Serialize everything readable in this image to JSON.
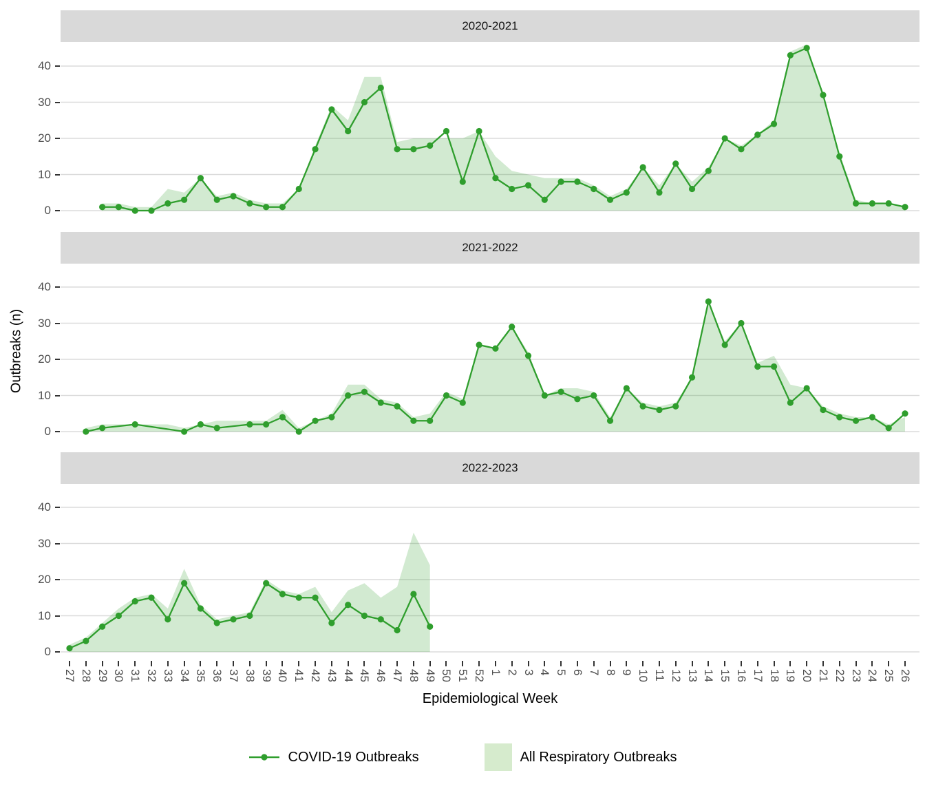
{
  "figure": {
    "x_axis_title": "Epidemiological Week",
    "y_axis_title": "Outbreaks (n)",
    "y_ticks": [
      0,
      10,
      20,
      30,
      40
    ],
    "weeks": [
      "27",
      "28",
      "29",
      "30",
      "31",
      "32",
      "33",
      "34",
      "35",
      "36",
      "37",
      "38",
      "39",
      "40",
      "41",
      "42",
      "43",
      "44",
      "45",
      "46",
      "47",
      "48",
      "49",
      "50",
      "51",
      "52",
      "1",
      "2",
      "3",
      "4",
      "5",
      "6",
      "7",
      "8",
      "9",
      "10",
      "11",
      "12",
      "13",
      "14",
      "15",
      "16",
      "17",
      "18",
      "19",
      "20",
      "21",
      "22",
      "23",
      "24",
      "25",
      "26"
    ],
    "facets": [
      "2020-2021",
      "2021-2022",
      "2022-2023"
    ],
    "legend": [
      {
        "label": "COVID-19 Outbreaks",
        "symbol": "line-point-swatch"
      },
      {
        "label": "All Respiratory Outbreaks",
        "symbol": "area-swatch"
      }
    ],
    "colors": {
      "line": "#2f9e2d",
      "area": "#33a02c",
      "area_opacity": 0.22,
      "legend_area_swatch": "#d6ebcd",
      "strip_bg": "#d9d9d9",
      "gridline": "#dbdbdb",
      "axis_text": "#4d4d4d",
      "tick_mark": "#333333"
    }
  },
  "chart_data": [
    {
      "type": "area",
      "facet": "2020-2021",
      "xlabel": "Epidemiological Week",
      "ylabel": "Outbreaks (n)",
      "ylim": [
        0,
        46
      ],
      "grid": true,
      "legend_position": "bottom",
      "categories": [
        "27",
        "28",
        "29",
        "30",
        "31",
        "32",
        "33",
        "34",
        "35",
        "36",
        "37",
        "38",
        "39",
        "40",
        "41",
        "42",
        "43",
        "44",
        "45",
        "46",
        "47",
        "48",
        "49",
        "50",
        "51",
        "52",
        "1",
        "2",
        "3",
        "4",
        "5",
        "6",
        "7",
        "8",
        "9",
        "10",
        "11",
        "12",
        "13",
        "14",
        "15",
        "16",
        "17",
        "18",
        "19",
        "20",
        "21",
        "22",
        "23",
        "24",
        "25",
        "26"
      ],
      "series": [
        {
          "name": "COVID-19 Outbreaks",
          "type": "line",
          "values": [
            null,
            null,
            1,
            1,
            0,
            0,
            2,
            3,
            9,
            3,
            4,
            2,
            1,
            1,
            6,
            17,
            28,
            22,
            30,
            34,
            17,
            17,
            18,
            22,
            8,
            22,
            9,
            6,
            7,
            3,
            8,
            8,
            6,
            3,
            5,
            12,
            5,
            13,
            6,
            11,
            20,
            17,
            21,
            24,
            43,
            45,
            32,
            15,
            2,
            2,
            2,
            1
          ]
        },
        {
          "name": "All Respiratory Outbreaks",
          "type": "area",
          "values": [
            null,
            null,
            2,
            2,
            1,
            1,
            6,
            5,
            9,
            4,
            5,
            3,
            2,
            2,
            6,
            18,
            29,
            25,
            37,
            37,
            19,
            20,
            20,
            20,
            20,
            22,
            15,
            11,
            10,
            9,
            9,
            9,
            7,
            4,
            6,
            12,
            7,
            13,
            8,
            12,
            20,
            18,
            21,
            25,
            44,
            46,
            32,
            16,
            3,
            2,
            2,
            1
          ]
        }
      ]
    },
    {
      "type": "area",
      "facet": "2021-2022",
      "xlabel": "Epidemiological Week",
      "ylabel": "Outbreaks (n)",
      "ylim": [
        0,
        46
      ],
      "grid": true,
      "legend_position": "bottom",
      "categories": [
        "27",
        "28",
        "29",
        "30",
        "31",
        "32",
        "33",
        "34",
        "35",
        "36",
        "37",
        "38",
        "39",
        "40",
        "41",
        "42",
        "43",
        "44",
        "45",
        "46",
        "47",
        "48",
        "49",
        "50",
        "51",
        "52",
        "1",
        "2",
        "3",
        "4",
        "5",
        "6",
        "7",
        "8",
        "9",
        "10",
        "11",
        "12",
        "13",
        "14",
        "15",
        "16",
        "17",
        "18",
        "19",
        "20",
        "21",
        "22",
        "23",
        "24",
        "25",
        "26"
      ],
      "series": [
        {
          "name": "COVID-19 Outbreaks",
          "type": "line",
          "values": [
            null,
            0,
            1,
            null,
            2,
            null,
            null,
            0,
            2,
            1,
            null,
            2,
            2,
            4,
            0,
            3,
            4,
            10,
            11,
            8,
            7,
            3,
            3,
            10,
            8,
            24,
            23,
            29,
            21,
            10,
            11,
            9,
            10,
            3,
            12,
            7,
            6,
            7,
            15,
            36,
            24,
            30,
            18,
            18,
            8,
            12,
            6,
            4,
            3,
            4,
            1,
            5
          ]
        },
        {
          "name": "All Respiratory Outbreaks",
          "type": "area",
          "values": [
            null,
            1,
            2,
            2,
            2,
            2,
            2,
            1,
            2,
            3,
            3,
            3,
            3,
            6,
            1,
            3,
            5,
            13,
            13,
            9,
            8,
            4,
            5,
            11,
            9,
            24,
            23,
            29,
            22,
            10,
            12,
            12,
            11,
            4,
            12,
            8,
            7,
            8,
            15,
            36,
            25,
            30,
            19,
            21,
            13,
            12,
            7,
            5,
            4,
            4,
            2,
            4
          ]
        }
      ]
    },
    {
      "type": "area",
      "facet": "2022-2023",
      "xlabel": "Epidemiological Week",
      "ylabel": "Outbreaks (n)",
      "ylim": [
        0,
        46
      ],
      "grid": true,
      "legend_position": "bottom",
      "categories": [
        "27",
        "28",
        "29",
        "30",
        "31",
        "32",
        "33",
        "34",
        "35",
        "36",
        "37",
        "38",
        "39",
        "40",
        "41",
        "42",
        "43",
        "44",
        "45",
        "46",
        "47",
        "48",
        "49",
        "50",
        "51",
        "52",
        "1",
        "2",
        "3",
        "4",
        "5",
        "6",
        "7",
        "8",
        "9",
        "10",
        "11",
        "12",
        "13",
        "14",
        "15",
        "16",
        "17",
        "18",
        "19",
        "20",
        "21",
        "22",
        "23",
        "24",
        "25",
        "26"
      ],
      "series": [
        {
          "name": "COVID-19 Outbreaks",
          "type": "line",
          "values": [
            1,
            3,
            7,
            10,
            14,
            15,
            9,
            19,
            12,
            8,
            9,
            10,
            19,
            16,
            15,
            15,
            8,
            13,
            10,
            9,
            6,
            16,
            7,
            null,
            null,
            null,
            null,
            null,
            null,
            null,
            null,
            null,
            null,
            null,
            null,
            null,
            null,
            null,
            null,
            null,
            null,
            null,
            null,
            null,
            null,
            null,
            null,
            null,
            null,
            null,
            null,
            null
          ]
        },
        {
          "name": "All Respiratory Outbreaks",
          "type": "area",
          "values": [
            2,
            4,
            8,
            12,
            15,
            16,
            12,
            23,
            13,
            9,
            10,
            11,
            20,
            17,
            16,
            18,
            11,
            17,
            19,
            15,
            18,
            33,
            24,
            null,
            null,
            null,
            null,
            null,
            null,
            null,
            null,
            null,
            null,
            null,
            null,
            null,
            null,
            null,
            null,
            null,
            null,
            null,
            null,
            null,
            null,
            null,
            null,
            null,
            null,
            null,
            null,
            null
          ]
        }
      ]
    }
  ]
}
